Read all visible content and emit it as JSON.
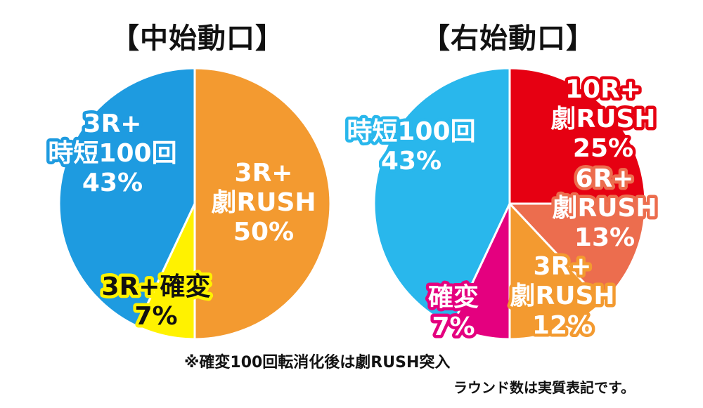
{
  "chart_data": [
    {
      "type": "pie",
      "title": "【中始動口】",
      "slices": [
        {
          "label_lines": [
            "3R+",
            "劇RUSH",
            "50%"
          ],
          "value": 50,
          "color": "#F39A30",
          "stroke": "#ffffff",
          "text_color": "#ffffff"
        },
        {
          "label_lines": [
            "3R+確変",
            "7%"
          ],
          "value": 7,
          "color": "#FFF200",
          "stroke": "#ffffff",
          "text_color": "#111111"
        },
        {
          "label_lines": [
            "3R+",
            "時短100回",
            "43%"
          ],
          "value": 43,
          "color": "#1E9BE0",
          "stroke": "#ffffff",
          "text_color": "#ffffff"
        }
      ]
    },
    {
      "type": "pie",
      "title": "【右始動口】",
      "slices": [
        {
          "label_lines": [
            "10R+",
            "劇RUSH",
            "25%"
          ],
          "value": 25,
          "color": "#E60012",
          "stroke": "#ffffff",
          "text_color": "#ffffff"
        },
        {
          "label_lines": [
            "6R+",
            "劇RUSH",
            "13%"
          ],
          "value": 13,
          "color": "#EC6D4E",
          "stroke": "#ffffff",
          "text_color": "#ffffff"
        },
        {
          "label_lines": [
            "3R+",
            "劇RUSH",
            "12%"
          ],
          "value": 12,
          "color": "#F39A30",
          "stroke": "#ffffff",
          "text_color": "#ffffff"
        },
        {
          "label_lines": [
            "確変",
            "7%"
          ],
          "value": 7,
          "color": "#E4007F",
          "stroke": "#ffffff",
          "text_color": "#ffffff"
        },
        {
          "label_lines": [
            "時短100回",
            "43%"
          ],
          "value": 43,
          "color": "#29B7EC",
          "stroke": "#ffffff",
          "text_color": "#ffffff"
        }
      ]
    }
  ],
  "notes": {
    "rush": "※確変100回転消化後は劇RUSH突入",
    "round": "ラウンド数は実質表記です。"
  }
}
